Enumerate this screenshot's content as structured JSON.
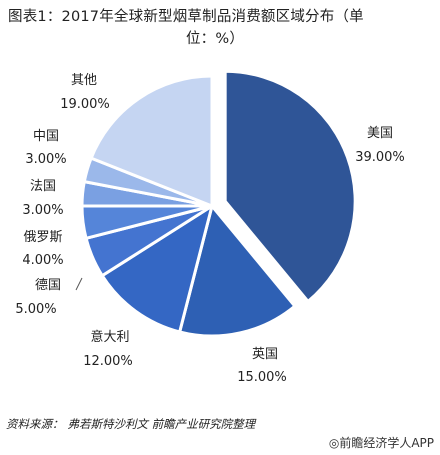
{
  "chart_data": {
    "type": "pie",
    "title_line1": "图表1：2017年全球新型烟草制品消费额区域分布（单",
    "title_line2": "位：%）",
    "slices": [
      {
        "name": "美国",
        "value": 39.0,
        "label": "39.00%",
        "color": "#2f5597",
        "explode": true
      },
      {
        "name": "英国",
        "value": 15.0,
        "label": "15.00%",
        "color": "#2e60b4",
        "explode": false
      },
      {
        "name": "意大利",
        "value": 12.0,
        "label": "12.00%",
        "color": "#3467c4",
        "explode": false
      },
      {
        "name": "德国",
        "value": 5.0,
        "label": "5.00%",
        "color": "#4474d0",
        "explode": false
      },
      {
        "name": "俄罗斯",
        "value": 4.0,
        "label": "4.00%",
        "color": "#5585d9",
        "explode": false
      },
      {
        "name": "法国",
        "value": 3.0,
        "label": "3.00%",
        "color": "#7aa0e2",
        "explode": false
      },
      {
        "name": "中国",
        "value": 3.0,
        "label": "3.00%",
        "color": "#9bb8ea",
        "explode": false
      },
      {
        "name": "其他",
        "value": 19.0,
        "label": "19.00%",
        "color": "#c5d5f2",
        "explode": false
      }
    ]
  },
  "footer": {
    "source_label": "资料来源：",
    "source_text": "弗若斯特沙利文 前瞻产业研究院整理",
    "brand": "◎前瞻经济学人APP"
  }
}
